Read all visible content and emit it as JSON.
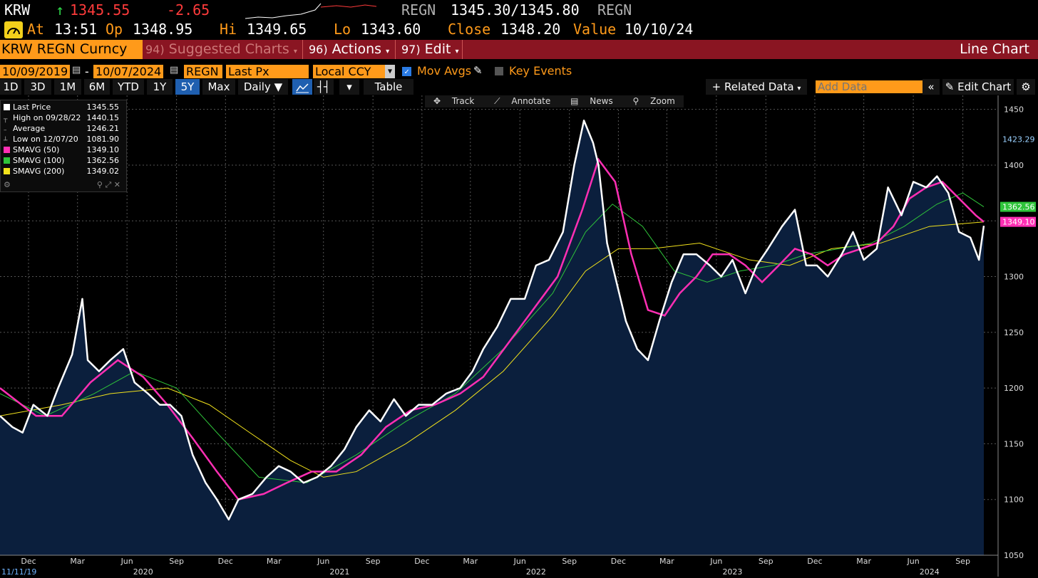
{
  "header": {
    "ticker": "KRW",
    "arrow": "↑",
    "last": "1345.55",
    "change": "-2.65",
    "security": "REGN",
    "bidask": "1345.30/1345.80",
    "security2": "REGN",
    "at_label": "At",
    "time": "13:51",
    "op_label": "Op",
    "open": "1348.95",
    "hi_label": "Hi",
    "high": "1349.65",
    "lo_label": "Lo",
    "low": "1343.60",
    "close_label": "Close",
    "close": "1348.20",
    "value_label": "Value",
    "value_date": "10/10/24"
  },
  "menubar": {
    "security_tag": "KRW REGN Curncy",
    "suggested_num": "94)",
    "suggested": "Suggested Charts",
    "actions_num": "96)",
    "actions": "Actions",
    "edit_num": "97)",
    "edit": "Edit",
    "right_title": "Line Chart"
  },
  "fields": {
    "start_date": "10/09/2019",
    "dash": "-",
    "end_date": "10/07/2024",
    "ticker": "REGN",
    "field": "Last Px",
    "currency": "Local CCY",
    "mov_avgs": "Mov Avgs",
    "key_events": "Key Events"
  },
  "buttons": {
    "periods": [
      "1D",
      "3D",
      "1M",
      "6M",
      "YTD",
      "1Y",
      "5Y",
      "Max"
    ],
    "active": "5Y",
    "frequency": "Daily",
    "table": "Table",
    "related": "Related Data",
    "add_data_placeholder": "Add Data",
    "edit_chart": "Edit Chart"
  },
  "chart_tools": {
    "track": "Track",
    "annotate": "Annotate",
    "news": "News",
    "zoom": "Zoom"
  },
  "legend": [
    {
      "label": "Last Price",
      "value": "1345.55",
      "color": "#ffffff"
    },
    {
      "label": "High on 09/28/22",
      "value": "1440.15",
      "color": ""
    },
    {
      "label": "Average",
      "value": "1246.21",
      "color": ""
    },
    {
      "label": "Low on 12/07/20",
      "value": "1081.90",
      "color": ""
    },
    {
      "label": "SMAVG (50)",
      "value": "1349.10",
      "color": "#ff2fb4"
    },
    {
      "label": "SMAVG (100)",
      "value": "1362.56",
      "color": "#2fc43a"
    },
    {
      "label": "SMAVG (200)",
      "value": "1349.02",
      "color": "#f2e21c"
    }
  ],
  "chart_data": {
    "type": "line",
    "title": "",
    "ylim": [
      1050,
      1460
    ],
    "y_ticks": [
      1050,
      1100,
      1150,
      1200,
      1250,
      1300,
      1350,
      1400,
      1450
    ],
    "x_tick_labels": [
      "Dec",
      "Mar",
      "Jun",
      "Sep",
      "Dec",
      "Mar",
      "Jun",
      "Sep",
      "Dec",
      "Mar",
      "Jun",
      "Sep",
      "Dec",
      "Mar",
      "Jun",
      "Sep",
      "Dec",
      "Mar",
      "Jun",
      "Sep"
    ],
    "x_tick_dates": [
      "2019-12-01",
      "2020-03-01",
      "2020-06-01",
      "2020-09-01",
      "2020-12-01",
      "2021-03-01",
      "2021-06-01",
      "2021-09-01",
      "2021-12-01",
      "2022-03-01",
      "2022-06-01",
      "2022-09-01",
      "2022-12-01",
      "2023-03-01",
      "2023-06-01",
      "2023-09-01",
      "2023-12-01",
      "2024-03-01",
      "2024-06-01",
      "2024-09-01"
    ],
    "year_labels": [
      "2020",
      "2021",
      "2022",
      "2023",
      "2024"
    ],
    "year_label_dates": [
      "2020-07-01",
      "2021-07-01",
      "2022-07-01",
      "2023-07-01",
      "2024-07-01"
    ],
    "start_label": "11/11/19",
    "x_range": [
      "2019-10-09",
      "2024-10-10"
    ],
    "series": [
      {
        "name": "Last Price",
        "color": "#ffffff",
        "fill": "#0b1f3d",
        "dates": [
          "2019-10-09",
          "2019-11-01",
          "2019-11-20",
          "2019-12-10",
          "2020-01-05",
          "2020-01-25",
          "2020-02-20",
          "2020-03-10",
          "2020-03-20",
          "2020-04-10",
          "2020-05-01",
          "2020-05-25",
          "2020-06-15",
          "2020-07-10",
          "2020-08-01",
          "2020-08-20",
          "2020-09-10",
          "2020-10-01",
          "2020-10-25",
          "2020-11-15",
          "2020-12-07",
          "2020-12-25",
          "2021-01-20",
          "2021-02-15",
          "2021-03-10",
          "2021-04-01",
          "2021-04-25",
          "2021-05-20",
          "2021-06-15",
          "2021-07-10",
          "2021-08-01",
          "2021-08-25",
          "2021-09-15",
          "2021-10-10",
          "2021-11-01",
          "2021-11-25",
          "2021-12-20",
          "2022-01-15",
          "2022-02-10",
          "2022-03-05",
          "2022-03-25",
          "2022-04-20",
          "2022-05-15",
          "2022-06-10",
          "2022-07-01",
          "2022-07-25",
          "2022-08-20",
          "2022-09-10",
          "2022-09-28",
          "2022-10-15",
          "2022-10-25",
          "2022-11-10",
          "2022-11-25",
          "2022-12-15",
          "2023-01-05",
          "2023-01-25",
          "2023-02-15",
          "2023-03-10",
          "2023-04-01",
          "2023-04-25",
          "2023-05-20",
          "2023-06-10",
          "2023-07-01",
          "2023-07-25",
          "2023-08-15",
          "2023-09-05",
          "2023-10-01",
          "2023-10-25",
          "2023-11-15",
          "2023-12-05",
          "2023-12-25",
          "2024-01-20",
          "2024-02-10",
          "2024-03-01",
          "2024-03-25",
          "2024-04-15",
          "2024-05-10",
          "2024-06-01",
          "2024-06-25",
          "2024-07-15",
          "2024-08-05",
          "2024-08-25",
          "2024-09-15",
          "2024-10-01",
          "2024-10-10"
        ],
        "values": [
          1175,
          1165,
          1160,
          1185,
          1175,
          1200,
          1230,
          1280,
          1225,
          1215,
          1225,
          1235,
          1205,
          1195,
          1185,
          1185,
          1175,
          1140,
          1115,
          1100,
          1082,
          1100,
          1105,
          1120,
          1130,
          1125,
          1115,
          1120,
          1130,
          1145,
          1165,
          1180,
          1170,
          1190,
          1175,
          1185,
          1185,
          1195,
          1200,
          1215,
          1235,
          1255,
          1280,
          1280,
          1310,
          1315,
          1340,
          1400,
          1440,
          1420,
          1400,
          1330,
          1300,
          1260,
          1235,
          1225,
          1260,
          1295,
          1320,
          1320,
          1310,
          1300,
          1315,
          1285,
          1310,
          1325,
          1345,
          1360,
          1310,
          1310,
          1300,
          1320,
          1340,
          1315,
          1325,
          1380,
          1355,
          1385,
          1380,
          1390,
          1375,
          1340,
          1335,
          1315,
          1345.55
        ]
      },
      {
        "name": "SMAVG (50)",
        "color": "#ff2fb4",
        "dates": [
          "2019-10-09",
          "2019-12-15",
          "2020-02-01",
          "2020-03-25",
          "2020-05-15",
          "2020-07-01",
          "2020-08-15",
          "2020-10-01",
          "2020-11-15",
          "2020-12-25",
          "2021-02-10",
          "2021-03-25",
          "2021-05-10",
          "2021-06-25",
          "2021-08-10",
          "2021-09-25",
          "2021-11-10",
          "2021-12-25",
          "2022-02-10",
          "2022-03-25",
          "2022-05-10",
          "2022-06-25",
          "2022-08-10",
          "2022-09-25",
          "2022-10-25",
          "2022-11-25",
          "2022-12-25",
          "2023-01-25",
          "2023-02-25",
          "2023-03-25",
          "2023-04-25",
          "2023-05-25",
          "2023-06-25",
          "2023-07-25",
          "2023-08-25",
          "2023-09-25",
          "2023-10-25",
          "2023-11-25",
          "2023-12-25",
          "2024-01-25",
          "2024-02-25",
          "2024-03-25",
          "2024-04-25",
          "2024-05-25",
          "2024-06-25",
          "2024-07-25",
          "2024-08-25",
          "2024-09-25",
          "2024-10-10"
        ],
        "values": [
          1200,
          1175,
          1175,
          1205,
          1225,
          1210,
          1185,
          1155,
          1125,
          1100,
          1105,
          1115,
          1125,
          1125,
          1140,
          1165,
          1180,
          1185,
          1195,
          1210,
          1240,
          1270,
          1300,
          1360,
          1405,
          1385,
          1320,
          1270,
          1265,
          1285,
          1300,
          1320,
          1320,
          1310,
          1295,
          1310,
          1325,
          1320,
          1310,
          1320,
          1325,
          1330,
          1345,
          1370,
          1380,
          1385,
          1370,
          1355,
          1349.1
        ]
      },
      {
        "name": "SMAVG (100)",
        "color": "#2fc43a",
        "dates": [
          "2019-10-09",
          "2020-01-01",
          "2020-04-01",
          "2020-06-15",
          "2020-09-01",
          "2020-11-15",
          "2021-02-01",
          "2021-05-01",
          "2021-08-01",
          "2021-11-01",
          "2022-02-01",
          "2022-05-01",
          "2022-08-01",
          "2022-10-01",
          "2022-11-20",
          "2023-01-15",
          "2023-03-15",
          "2023-05-15",
          "2023-07-15",
          "2023-09-15",
          "2023-11-15",
          "2024-01-15",
          "2024-03-15",
          "2024-05-15",
          "2024-07-15",
          "2024-09-01",
          "2024-10-10"
        ],
        "values": [
          1195,
          1175,
          1195,
          1215,
          1200,
          1160,
          1120,
          1115,
          1140,
          1170,
          1195,
          1235,
          1285,
          1340,
          1365,
          1345,
          1305,
          1295,
          1305,
          1310,
          1320,
          1325,
          1330,
          1345,
          1365,
          1375,
          1362.56
        ]
      },
      {
        "name": "SMAVG (200)",
        "color": "#f2e21c",
        "dates": [
          "2019-10-09",
          "2020-02-01",
          "2020-05-01",
          "2020-08-15",
          "2020-11-01",
          "2021-01-15",
          "2021-04-01",
          "2021-06-01",
          "2021-08-01",
          "2021-11-01",
          "2022-02-01",
          "2022-05-01",
          "2022-08-01",
          "2022-10-01",
          "2022-12-01",
          "2023-02-01",
          "2023-05-01",
          "2023-08-01",
          "2023-10-15",
          "2024-01-01",
          "2024-04-01",
          "2024-07-01",
          "2024-10-10"
        ],
        "values": [
          1175,
          1185,
          1195,
          1200,
          1185,
          1160,
          1135,
          1120,
          1125,
          1150,
          1180,
          1215,
          1265,
          1305,
          1325,
          1325,
          1330,
          1315,
          1310,
          1325,
          1330,
          1345,
          1349.02
        ]
      }
    ],
    "right_labels": [
      {
        "text": "1423.29",
        "value": 1423.29,
        "bg": "#000000",
        "fg": "#9ad1ff"
      },
      {
        "text": "1362.56",
        "value": 1362.56,
        "bg": "#2fc43a",
        "fg": "#ffffff"
      },
      {
        "text": "1349.10",
        "value": 1349.1,
        "bg": "#ff2fb4",
        "fg": "#ffffff"
      }
    ]
  }
}
